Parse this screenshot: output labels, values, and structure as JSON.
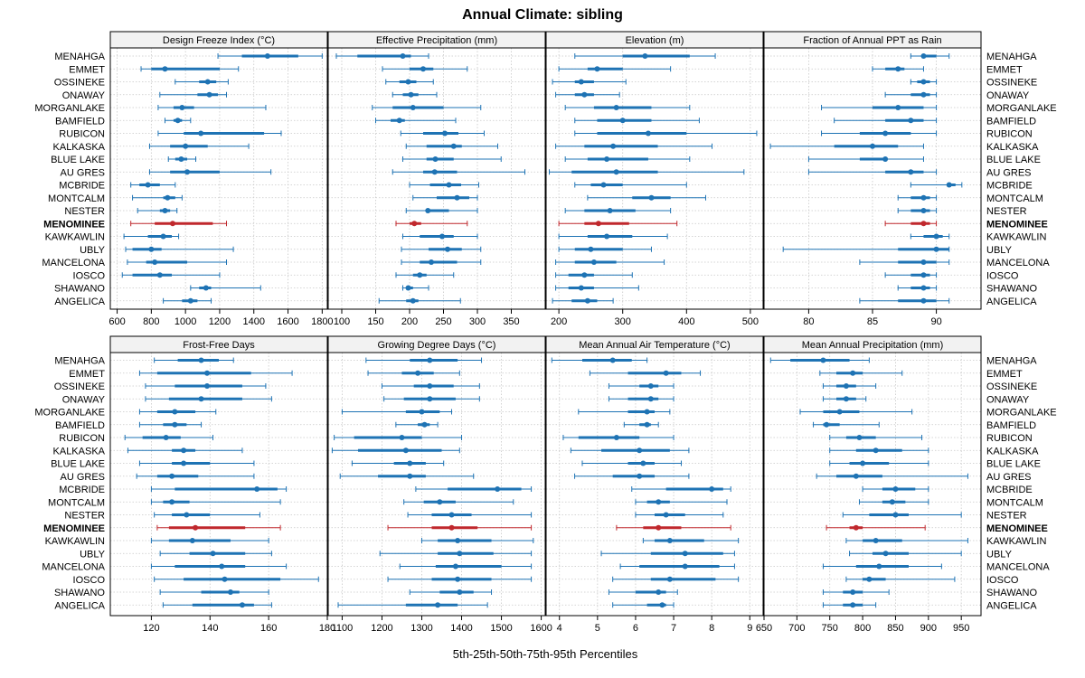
{
  "title": "Annual Climate: sibling",
  "x_axis_label": "5th-25th-50th-75th-95th Percentiles",
  "colors": {
    "series": "#1e73b4",
    "highlight": "#c0282d",
    "grid": "#c8c8c8",
    "strip": "#f2f2f2"
  },
  "highlight_site": "MENOMINEE",
  "sites": [
    "MENAHGA",
    "EMMET",
    "OSSINEKE",
    "ONAWAY",
    "MORGANLAKE",
    "BAMFIELD",
    "RUBICON",
    "KALKASKA",
    "BLUE LAKE",
    "AU GRES",
    "MCBRIDE",
    "MONTCALM",
    "NESTER",
    "MENOMINEE",
    "KAWKAWLIN",
    "UBLY",
    "MANCELONA",
    "IOSCO",
    "SHAWANO",
    "ANGELICA"
  ],
  "chart_data": [
    {
      "type": "percentile-dotplot",
      "title": "Design Freeze Index (°C)",
      "xlim": [
        560,
        1830
      ],
      "ticks": [
        600,
        800,
        1000,
        1200,
        1400,
        1600,
        1800
      ],
      "tick_labels": [
        "600",
        "800",
        "1000",
        "1200",
        "1400",
        "1600",
        "1800"
      ],
      "values": [
        [
          1190,
          1330,
          1480,
          1660,
          1800
        ],
        [
          740,
          800,
          880,
          1200,
          1310
        ],
        [
          940,
          1080,
          1130,
          1180,
          1250
        ],
        [
          850,
          1070,
          1140,
          1190,
          1240
        ],
        [
          840,
          930,
          980,
          1050,
          1470
        ],
        [
          880,
          930,
          955,
          980,
          1030
        ],
        [
          840,
          990,
          1090,
          1460,
          1560
        ],
        [
          790,
          910,
          1000,
          1130,
          1370
        ],
        [
          900,
          940,
          975,
          1010,
          1060
        ],
        [
          790,
          910,
          1010,
          1200,
          1500
        ],
        [
          680,
          730,
          780,
          850,
          940
        ],
        [
          690,
          870,
          895,
          940,
          980
        ],
        [
          720,
          850,
          880,
          910,
          950
        ],
        [
          680,
          820,
          925,
          1160,
          1240
        ],
        [
          640,
          780,
          870,
          920,
          960
        ],
        [
          650,
          690,
          800,
          860,
          1280
        ],
        [
          660,
          770,
          820,
          1010,
          1240
        ],
        [
          630,
          690,
          850,
          920,
          1200
        ],
        [
          1030,
          1080,
          1120,
          1150,
          1440
        ],
        [
          870,
          980,
          1030,
          1070,
          1150
        ]
      ]
    },
    {
      "type": "percentile-dotplot",
      "title": "Effective Precipitation (mm)",
      "xlim": [
        80,
        400
      ],
      "ticks": [
        100,
        150,
        200,
        250,
        300,
        350
      ],
      "tick_labels": [
        "100",
        "150",
        "200",
        "250",
        "300",
        "350"
      ],
      "values": [
        [
          92,
          123,
          190,
          202,
          228
        ],
        [
          160,
          200,
          220,
          235,
          285
        ],
        [
          165,
          185,
          198,
          210,
          235
        ],
        [
          175,
          190,
          202,
          213,
          240
        ],
        [
          145,
          175,
          205,
          250,
          305
        ],
        [
          150,
          172,
          185,
          193,
          268
        ],
        [
          187,
          220,
          252,
          272,
          310
        ],
        [
          195,
          225,
          265,
          277,
          330
        ],
        [
          190,
          225,
          238,
          265,
          335
        ],
        [
          175,
          220,
          237,
          270,
          370
        ],
        [
          200,
          230,
          258,
          276,
          302
        ],
        [
          205,
          240,
          270,
          288,
          300
        ],
        [
          195,
          225,
          227,
          258,
          300
        ],
        [
          180,
          200,
          207,
          217,
          285
        ],
        [
          190,
          215,
          248,
          265,
          300
        ],
        [
          188,
          228,
          256,
          277,
          305
        ],
        [
          188,
          215,
          232,
          270,
          305
        ],
        [
          180,
          205,
          215,
          225,
          265
        ],
        [
          190,
          195,
          198,
          205,
          228
        ],
        [
          155,
          195,
          205,
          213,
          275
        ]
      ]
    },
    {
      "type": "percentile-dotplot",
      "title": "Elevation (m)",
      "xlim": [
        180,
        520
      ],
      "ticks": [
        200,
        300,
        400,
        500
      ],
      "tick_labels": [
        "200",
        "300",
        "400",
        "500"
      ],
      "values": [
        [
          225,
          300,
          335,
          405,
          445
        ],
        [
          200,
          245,
          260,
          300,
          375
        ],
        [
          190,
          225,
          235,
          255,
          305
        ],
        [
          195,
          225,
          240,
          255,
          295
        ],
        [
          210,
          255,
          290,
          345,
          405
        ],
        [
          225,
          260,
          300,
          345,
          420
        ],
        [
          225,
          260,
          340,
          400,
          510
        ],
        [
          195,
          240,
          285,
          355,
          440
        ],
        [
          210,
          245,
          275,
          340,
          405
        ],
        [
          185,
          220,
          290,
          355,
          490
        ],
        [
          225,
          250,
          270,
          300,
          400
        ],
        [
          245,
          315,
          345,
          375,
          430
        ],
        [
          210,
          240,
          280,
          320,
          375
        ],
        [
          200,
          240,
          262,
          310,
          385
        ],
        [
          200,
          245,
          275,
          315,
          370
        ],
        [
          200,
          225,
          250,
          300,
          345
        ],
        [
          195,
          225,
          255,
          290,
          365
        ],
        [
          195,
          215,
          240,
          255,
          315
        ],
        [
          195,
          215,
          235,
          255,
          325
        ],
        [
          190,
          220,
          245,
          260,
          285
        ]
      ]
    },
    {
      "type": "percentile-dotplot",
      "title": "Fraction of Annual PPT as Rain",
      "xlim": [
        76.5,
        93.5
      ],
      "ticks": [
        80,
        85,
        90
      ],
      "tick_labels": [
        "80",
        "85",
        "90"
      ],
      "values": [
        [
          88,
          89,
          89,
          90,
          91
        ],
        [
          85,
          86,
          87,
          87.5,
          89
        ],
        [
          88,
          88.5,
          89,
          89.5,
          90
        ],
        [
          86,
          88,
          89,
          89.5,
          90
        ],
        [
          81,
          85,
          87,
          89,
          90
        ],
        [
          82,
          86,
          88,
          89,
          90
        ],
        [
          81,
          84,
          86,
          88,
          90
        ],
        [
          77,
          82,
          85,
          87,
          89
        ],
        [
          80,
          84,
          86,
          86,
          89
        ],
        [
          80,
          86,
          88,
          89,
          90
        ],
        [
          88,
          91,
          91,
          91.5,
          92
        ],
        [
          87,
          88,
          89,
          89.5,
          90
        ],
        [
          87,
          88,
          89,
          89.5,
          90
        ],
        [
          86,
          88,
          89,
          89.5,
          90
        ],
        [
          88,
          89,
          90,
          90.5,
          91
        ],
        [
          78,
          87,
          90,
          91,
          91
        ],
        [
          84,
          87,
          89,
          90,
          91
        ],
        [
          86,
          88,
          89,
          89.5,
          90
        ],
        [
          87,
          88,
          89,
          89.5,
          90
        ],
        [
          84,
          87,
          89,
          90,
          91
        ]
      ]
    },
    {
      "type": "percentile-dotplot",
      "title": "Frost-Free Days",
      "xlim": [
        106,
        180
      ],
      "ticks": [
        120,
        140,
        160,
        180
      ],
      "tick_labels": [
        "120",
        "140",
        "160",
        "180"
      ],
      "values": [
        [
          121,
          129,
          137,
          143,
          148
        ],
        [
          116,
          122,
          139,
          154,
          168
        ],
        [
          118,
          128,
          139,
          151,
          159
        ],
        [
          118,
          126,
          137,
          151,
          161
        ],
        [
          116,
          122,
          128,
          135,
          142
        ],
        [
          116,
          124,
          128,
          132,
          137
        ],
        [
          111,
          117,
          125,
          130,
          141
        ],
        [
          112,
          127,
          131,
          135,
          151
        ],
        [
          116,
          127,
          131,
          140,
          155
        ],
        [
          115,
          122,
          127,
          136,
          155
        ],
        [
          120,
          128,
          156,
          163,
          166
        ],
        [
          120,
          124,
          127,
          133,
          164
        ],
        [
          121,
          127,
          132,
          140,
          157
        ],
        [
          122,
          126,
          135,
          152,
          164
        ],
        [
          120,
          126,
          134,
          147,
          160
        ],
        [
          123,
          133,
          141,
          152,
          161
        ],
        [
          120,
          128,
          144,
          152,
          166
        ],
        [
          121,
          131,
          145,
          164,
          177
        ],
        [
          123,
          137,
          147,
          150,
          160
        ],
        [
          124,
          134,
          151,
          155,
          161
        ]
      ]
    },
    {
      "type": "percentile-dotplot",
      "title": "Growing Degree Days (°C)",
      "xlim": [
        1065,
        1610
      ],
      "ticks": [
        1100,
        1200,
        1300,
        1400,
        1500,
        1600
      ],
      "tick_labels": [
        "1100",
        "1200",
        "1300",
        "1400",
        "1500",
        "1600"
      ],
      "values": [
        [
          1160,
          1270,
          1320,
          1390,
          1450
        ],
        [
          1165,
          1250,
          1290,
          1330,
          1395
        ],
        [
          1200,
          1280,
          1320,
          1380,
          1445
        ],
        [
          1205,
          1255,
          1320,
          1385,
          1445
        ],
        [
          1100,
          1260,
          1300,
          1345,
          1375
        ],
        [
          1235,
          1290,
          1307,
          1320,
          1340
        ],
        [
          1080,
          1130,
          1250,
          1300,
          1400
        ],
        [
          1075,
          1140,
          1260,
          1350,
          1395
        ],
        [
          1125,
          1230,
          1270,
          1310,
          1355
        ],
        [
          1095,
          1190,
          1270,
          1310,
          1430
        ],
        [
          1285,
          1365,
          1490,
          1550,
          1575
        ],
        [
          1255,
          1305,
          1345,
          1385,
          1530
        ],
        [
          1265,
          1325,
          1375,
          1425,
          1575
        ],
        [
          1215,
          1325,
          1375,
          1440,
          1575
        ],
        [
          1300,
          1340,
          1390,
          1475,
          1580
        ],
        [
          1195,
          1340,
          1395,
          1480,
          1575
        ],
        [
          1245,
          1335,
          1385,
          1500,
          1575
        ],
        [
          1215,
          1325,
          1390,
          1475,
          1575
        ],
        [
          1270,
          1345,
          1395,
          1430,
          1475
        ],
        [
          1090,
          1260,
          1340,
          1390,
          1465
        ]
      ]
    },
    {
      "type": "percentile-dotplot",
      "title": "Mean Annual Air Temperature (°C)",
      "xlim": [
        3.65,
        9.35
      ],
      "ticks": [
        4,
        5,
        6,
        7,
        8,
        9
      ],
      "tick_labels": [
        "4",
        "5",
        "6",
        "7",
        "8",
        "9"
      ],
      "values": [
        [
          3.8,
          4.6,
          5.4,
          5.9,
          6.3
        ],
        [
          4.8,
          5.8,
          6.8,
          7.2,
          7.7
        ],
        [
          5.3,
          6.1,
          6.4,
          6.6,
          7.0
        ],
        [
          5.3,
          5.8,
          6.4,
          6.6,
          7.0
        ],
        [
          4.5,
          5.8,
          6.3,
          6.5,
          6.9
        ],
        [
          5.7,
          6.1,
          6.3,
          6.4,
          6.6
        ],
        [
          4.1,
          4.5,
          5.5,
          6.1,
          7.0
        ],
        [
          4.3,
          5.1,
          6.1,
          6.9,
          7.4
        ],
        [
          4.6,
          5.8,
          6.2,
          6.5,
          7.2
        ],
        [
          4.4,
          5.4,
          6.1,
          6.5,
          7.4
        ],
        [
          5.9,
          6.8,
          8.0,
          8.3,
          8.5
        ],
        [
          6.0,
          6.3,
          6.6,
          6.9,
          8.4
        ],
        [
          6.0,
          6.5,
          6.8,
          7.3,
          8.3
        ],
        [
          5.5,
          6.2,
          6.6,
          7.2,
          8.5
        ],
        [
          6.2,
          6.5,
          6.9,
          7.8,
          8.7
        ],
        [
          5.1,
          6.4,
          7.3,
          8.3,
          8.6
        ],
        [
          5.6,
          6.1,
          7.3,
          8.2,
          8.6
        ],
        [
          5.4,
          6.4,
          6.9,
          8.1,
          8.7
        ],
        [
          5.3,
          6.0,
          6.6,
          6.8,
          7.1
        ],
        [
          5.4,
          6.3,
          6.7,
          6.8,
          7.0
        ]
      ]
    },
    {
      "type": "percentile-dotplot",
      "title": "Mean Annual Precipitation (mm)",
      "xlim": [
        650,
        980
      ],
      "ticks": [
        650,
        700,
        750,
        800,
        850,
        900,
        950
      ],
      "tick_labels": [
        "650",
        "700",
        "750",
        "800",
        "850",
        "900",
        "950"
      ],
      "values": [
        [
          660,
          690,
          740,
          780,
          810
        ],
        [
          735,
          760,
          785,
          800,
          860
        ],
        [
          740,
          760,
          775,
          790,
          820
        ],
        [
          740,
          760,
          775,
          790,
          805
        ],
        [
          705,
          740,
          765,
          795,
          875
        ],
        [
          725,
          740,
          745,
          765,
          825
        ],
        [
          750,
          775,
          795,
          820,
          890
        ],
        [
          750,
          790,
          820,
          860,
          900
        ],
        [
          750,
          780,
          800,
          840,
          900
        ],
        [
          730,
          760,
          790,
          830,
          960
        ],
        [
          800,
          830,
          850,
          880,
          900
        ],
        [
          795,
          830,
          845,
          865,
          900
        ],
        [
          770,
          810,
          850,
          870,
          950
        ],
        [
          745,
          780,
          790,
          800,
          895
        ],
        [
          775,
          800,
          820,
          860,
          960
        ],
        [
          780,
          815,
          835,
          870,
          950
        ],
        [
          740,
          790,
          825,
          870,
          920
        ],
        [
          775,
          800,
          810,
          835,
          940
        ],
        [
          740,
          770,
          785,
          800,
          840
        ],
        [
          740,
          770,
          785,
          800,
          820
        ]
      ]
    }
  ]
}
